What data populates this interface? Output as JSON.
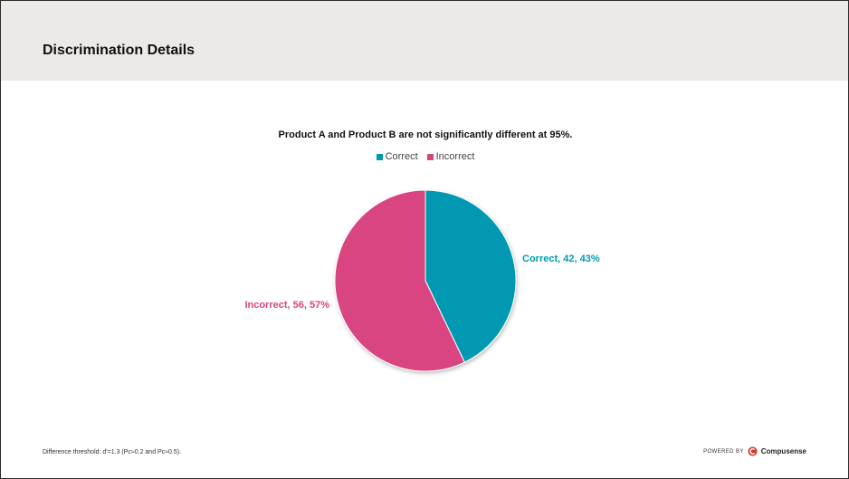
{
  "header": {
    "title": "Discrimination Details"
  },
  "chart_data": {
    "type": "pie",
    "title": "Product A and Product B are not significantly different at 95%.",
    "legend_position": "top",
    "slices": [
      {
        "label": "Correct",
        "value": 42,
        "percent": 43,
        "color": "#0099b1",
        "data_label": "Correct, 42, 43%"
      },
      {
        "label": "Incorrect",
        "value": 56,
        "percent": 57,
        "color": "#d84480",
        "data_label": "Incorrect, 56, 57%"
      }
    ]
  },
  "footer": {
    "note": "Difference threshold: d'=1.3 (Pc≈0.2 and Pc≈0.5).",
    "powered_by": "POWERED BY",
    "brand": "Compusense",
    "brand_color": "#d63a2f"
  }
}
